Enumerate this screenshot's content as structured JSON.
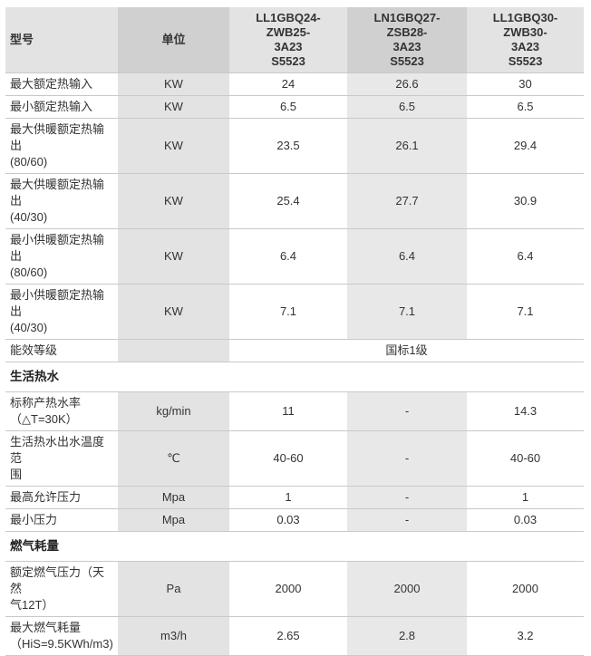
{
  "colors": {
    "header-light": "#e3e3e3",
    "header-dark": "#d0d0d0",
    "unit-col": "#e3e3e3",
    "mid-col": "#e8e8e8",
    "border": "#c9c9c9",
    "text": "#333333"
  },
  "table": {
    "header": {
      "model_label": "型号",
      "unit_label": "单位",
      "models": [
        "LL1GBQ24-\nZWB25-\n3A23\nS5523",
        "LN1GBQ27-\nZSB28-\n3A23\nS5523",
        "LL1GBQ30-\nZWB30-\n3A23\nS5523"
      ]
    },
    "rows": [
      {
        "type": "data",
        "label": "最大额定热输入",
        "unit": "KW",
        "values": [
          "24",
          "26.6",
          "30"
        ]
      },
      {
        "type": "data",
        "label": "最小额定热输入",
        "unit": "KW",
        "values": [
          "6.5",
          "6.5",
          "6.5"
        ]
      },
      {
        "type": "data",
        "label": "最大供暖额定热输出\n(80/60)",
        "unit": "KW",
        "values": [
          "23.5",
          "26.1",
          "29.4"
        ]
      },
      {
        "type": "data",
        "label": "最大供暖额定热输出\n(40/30)",
        "unit": "KW",
        "values": [
          "25.4",
          "27.7",
          "30.9"
        ]
      },
      {
        "type": "data",
        "label": "最小供暖额定热输出\n(80/60)",
        "unit": "KW",
        "values": [
          "6.4",
          "6.4",
          "6.4"
        ]
      },
      {
        "type": "data",
        "label": "最小供暖额定热输出\n(40/30)",
        "unit": "KW",
        "values": [
          "7.1",
          "7.1",
          "7.1"
        ]
      },
      {
        "type": "merged",
        "label": "能效等级",
        "unit": "",
        "merged_value": "国标1级"
      },
      {
        "type": "section",
        "label": "生活热水"
      },
      {
        "type": "data",
        "label": "标称产热水率\n（△T=30K）",
        "unit": "kg/min",
        "values": [
          "11",
          "-",
          "14.3"
        ]
      },
      {
        "type": "data",
        "label": "生活热水出水温度范\n围",
        "unit": "℃",
        "values": [
          "40-60",
          "-",
          "40-60"
        ]
      },
      {
        "type": "data",
        "label": "最高允许压力",
        "unit": "Mpa",
        "values": [
          "1",
          "-",
          "1"
        ]
      },
      {
        "type": "data",
        "label": "最小压力",
        "unit": "Mpa",
        "values": [
          "0.03",
          "-",
          "0.03"
        ]
      },
      {
        "type": "section",
        "label": "燃气耗量"
      },
      {
        "type": "data",
        "label": "额定燃气压力（天然\n气12T）",
        "unit": "Pa",
        "values": [
          "2000",
          "2000",
          "2000"
        ]
      },
      {
        "type": "data",
        "label": "最大燃气耗量\n（HiS=9.5KWh/m3)",
        "unit": "m3/h",
        "values": [
          "2.65",
          "2.8",
          "3.2"
        ]
      }
    ]
  }
}
